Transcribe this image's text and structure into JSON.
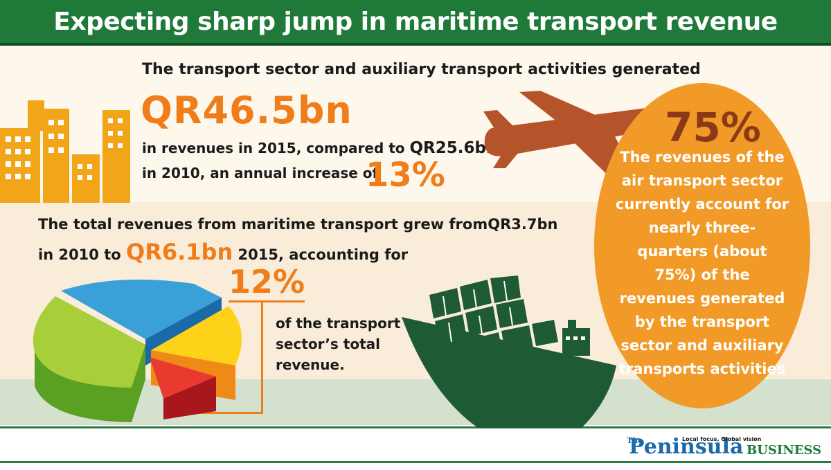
{
  "title": "Expecting sharp jump in maritime transport revenue",
  "section1": {
    "line1": "The transport sector and auxiliary transport activities generated",
    "amount": "QR46.5bn",
    "line2": "in revenues in 2015, compared to",
    "amount2010": "QR25.6bn",
    "line3": "in 2010, an annual increase of",
    "increase": "13%"
  },
  "section2": {
    "line1": "The total revenues from maritime transport grew from",
    "from_amount": "QR3.7bn",
    "line2a": "in 2010 to",
    "to_amount": "QR6.1bn",
    "line2b": "2015, accounting for",
    "share": "12%",
    "share_text_1": "of the transport",
    "share_text_2": "sector’s total",
    "share_text_3": "revenue."
  },
  "air": {
    "share": "75%",
    "lines": [
      "The revenues of the",
      "air transport sector",
      "currently account for",
      "nearly three-",
      "quarters (about",
      "75%) of the",
      "revenues generated",
      "by the transport",
      "sector and auxiliary",
      "transports activities"
    ]
  },
  "footer": {
    "brand_small": "The",
    "brand_main": "Peninsula",
    "tagline": "Local focus, Global vision",
    "brand_section": "BUSINESS"
  },
  "colors": {
    "green": "#1f7a3a",
    "orange": "#ef7d1a",
    "oval": "#f29a28",
    "plane": "#b5542a",
    "ship": "#1e5a34",
    "buildings": "#f2a518"
  },
  "icons": [
    "buildings-icon",
    "airplane-icon",
    "cargo-ship-icon",
    "pie-chart-graphic",
    "peninsula-logo"
  ]
}
